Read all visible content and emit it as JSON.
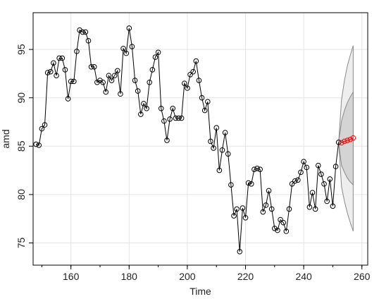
{
  "chart_data": {
    "type": "line",
    "xlabel": "Time",
    "ylabel": "amd",
    "xlim": [
      147,
      262
    ],
    "ylim": [
      72.7,
      98.8
    ],
    "x_ticks": [
      160,
      180,
      200,
      220,
      240,
      260
    ],
    "y_ticks": [
      75,
      80,
      85,
      90,
      95
    ],
    "grid": true,
    "series": [
      {
        "role": "observed",
        "color": "#000000",
        "marker": "open-circle",
        "x": [
          148,
          149,
          150,
          151,
          152,
          153,
          154,
          155,
          156,
          157,
          158,
          159,
          160,
          161,
          162,
          163,
          164,
          165,
          166,
          167,
          168,
          169,
          170,
          171,
          172,
          173,
          174,
          175,
          176,
          177,
          178,
          179,
          180,
          181,
          182,
          183,
          184,
          185,
          186,
          187,
          188,
          189,
          190,
          191,
          192,
          193,
          194,
          195,
          196,
          197,
          198,
          199,
          200,
          201,
          202,
          203,
          204,
          205,
          206,
          207,
          208,
          209,
          210,
          211,
          212,
          213,
          214,
          215,
          216,
          217,
          218,
          219,
          220,
          221,
          222,
          223,
          224,
          225,
          226,
          227,
          228,
          229,
          230,
          231,
          232,
          233,
          234,
          235,
          236,
          237,
          238,
          239,
          240,
          241,
          242,
          243,
          244,
          245,
          246,
          247,
          248,
          249,
          250,
          251,
          252
        ],
        "y": [
          85.2,
          85.1,
          86.8,
          87.2,
          92.6,
          92.7,
          93.6,
          92.3,
          94.1,
          94.1,
          92.9,
          89.9,
          91.7,
          91.7,
          94.8,
          97.0,
          96.8,
          96.8,
          95.9,
          93.2,
          93.2,
          91.6,
          91.8,
          91.6,
          90.6,
          92.3,
          91.8,
          92.3,
          92.8,
          90.4,
          95.1,
          94.6,
          97.2,
          95.3,
          91.8,
          90.7,
          88.3,
          89.4,
          88.9,
          91.6,
          92.9,
          94.2,
          94.7,
          88.9,
          87.6,
          85.6,
          87.8,
          88.9,
          87.9,
          87.9,
          87.9,
          91.5,
          91.0,
          92.4,
          92.7,
          93.8,
          91.8,
          90.0,
          88.7,
          89.6,
          85.5,
          84.8,
          86.9,
          82.5,
          84.6,
          86.4,
          84.2,
          81.0,
          77.8,
          78.5,
          74.1,
          78.6,
          77.6,
          81.2,
          81.1,
          82.6,
          82.7,
          82.6,
          78.2,
          78.9,
          80.4,
          78.5,
          76.5,
          76.3,
          77.4,
          77.1,
          76.2,
          78.5,
          81.1,
          81.4,
          81.5,
          82.3,
          83.4,
          82.8,
          78.7,
          80.2,
          78.5,
          83.0,
          82.1,
          81.1,
          79.3,
          81.6,
          78.8,
          82.9,
          85.4
        ]
      },
      {
        "role": "forecast",
        "color": "#ff0000",
        "marker": "open-circle",
        "x": [
          253,
          254,
          255,
          256,
          257
        ],
        "y": [
          85.35,
          85.5,
          85.6,
          85.7,
          85.85
        ]
      }
    ],
    "bands": [
      {
        "role": "outer-interval",
        "fill": "#eeeeee",
        "x": [
          252,
          253,
          254,
          255,
          256,
          257
        ],
        "upper": [
          85.4,
          89.8,
          91.8,
          93.3,
          94.4,
          95.4
        ],
        "lower": [
          85.4,
          80.8,
          79.3,
          78.1,
          77.1,
          76.2
        ]
      },
      {
        "role": "inner-interval",
        "fill": "#d4d4d4",
        "x": [
          252,
          253,
          254,
          255,
          256,
          257
        ],
        "upper": [
          85.4,
          87.6,
          88.7,
          89.5,
          90.1,
          90.6
        ],
        "lower": [
          85.4,
          83.0,
          82.3,
          81.7,
          81.3,
          81.0
        ]
      }
    ]
  }
}
